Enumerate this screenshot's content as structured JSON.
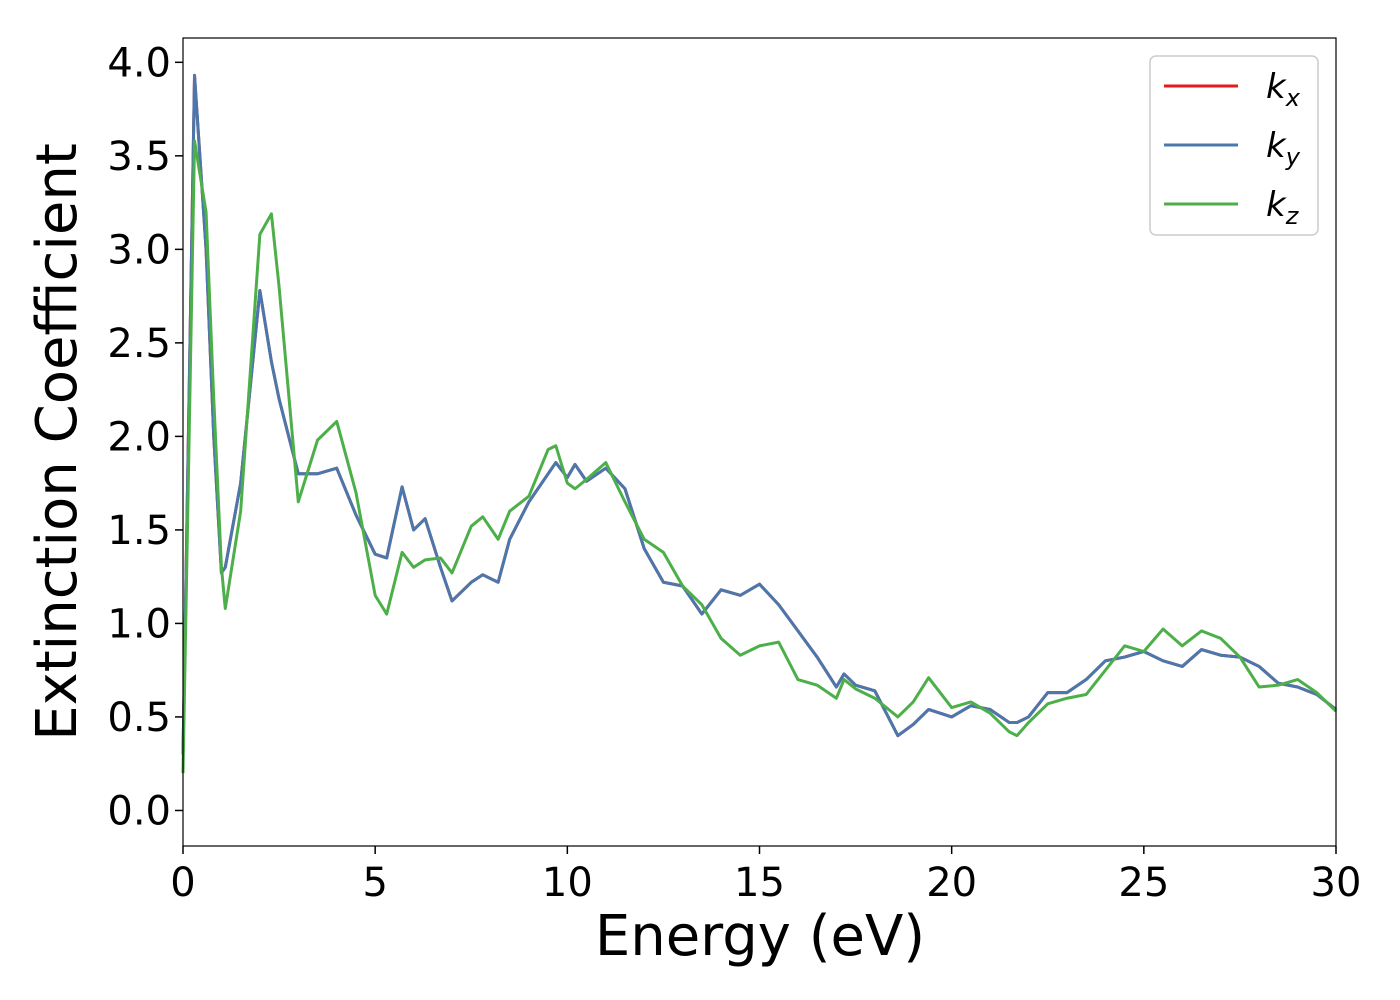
{
  "chart_data": {
    "type": "line",
    "xlabel": "Energy (eV)",
    "ylabel": "Extinction Coefficient",
    "x": [
      0,
      0.3,
      0.6,
      0.8,
      1.0,
      1.1,
      1.5,
      2.0,
      2.3,
      2.5,
      3.0,
      3.5,
      4.0,
      4.5,
      5.0,
      5.3,
      5.7,
      6.0,
      6.3,
      6.7,
      7.0,
      7.5,
      7.8,
      8.2,
      8.5,
      9.0,
      9.5,
      9.7,
      10.0,
      10.2,
      10.5,
      11.0,
      11.5,
      12.0,
      12.5,
      13.0,
      13.5,
      14.0,
      14.5,
      15.0,
      15.5,
      16.0,
      16.5,
      17.0,
      17.2,
      17.5,
      18.0,
      18.6,
      19.0,
      19.4,
      20.0,
      20.5,
      21.0,
      21.5,
      21.7,
      22.0,
      22.5,
      23.0,
      23.5,
      24.0,
      24.5,
      25.0,
      25.5,
      26.0,
      26.5,
      27.0,
      27.5,
      28.0,
      28.5,
      29.0,
      29.5,
      30.0
    ],
    "series": [
      {
        "name": "kx",
        "color": "#e41a1c",
        "values": [
          0.3,
          3.93,
          3.0,
          2.0,
          1.27,
          1.3,
          1.75,
          2.78,
          2.4,
          2.2,
          1.8,
          1.8,
          1.83,
          1.58,
          1.37,
          1.35,
          1.73,
          1.5,
          1.56,
          1.3,
          1.12,
          1.22,
          1.26,
          1.22,
          1.45,
          1.65,
          1.8,
          1.86,
          1.78,
          1.85,
          1.76,
          1.83,
          1.72,
          1.4,
          1.22,
          1.2,
          1.05,
          1.18,
          1.15,
          1.21,
          1.1,
          0.96,
          0.82,
          0.66,
          0.73,
          0.67,
          0.64,
          0.4,
          0.46,
          0.54,
          0.5,
          0.56,
          0.54,
          0.47,
          0.47,
          0.5,
          0.63,
          0.63,
          0.7,
          0.8,
          0.82,
          0.85,
          0.8,
          0.77,
          0.86,
          0.83,
          0.82,
          0.77,
          0.68,
          0.66,
          0.62,
          0.54
        ]
      },
      {
        "name": "ky",
        "color": "#4a78ac",
        "values": [
          0.3,
          3.93,
          3.0,
          2.0,
          1.27,
          1.3,
          1.75,
          2.78,
          2.4,
          2.2,
          1.8,
          1.8,
          1.83,
          1.58,
          1.37,
          1.35,
          1.73,
          1.5,
          1.56,
          1.3,
          1.12,
          1.22,
          1.26,
          1.22,
          1.45,
          1.65,
          1.8,
          1.86,
          1.78,
          1.85,
          1.76,
          1.83,
          1.72,
          1.4,
          1.22,
          1.2,
          1.05,
          1.18,
          1.15,
          1.21,
          1.1,
          0.96,
          0.82,
          0.66,
          0.73,
          0.67,
          0.64,
          0.4,
          0.46,
          0.54,
          0.5,
          0.56,
          0.54,
          0.47,
          0.47,
          0.5,
          0.63,
          0.63,
          0.7,
          0.8,
          0.82,
          0.85,
          0.8,
          0.77,
          0.86,
          0.83,
          0.82,
          0.77,
          0.68,
          0.66,
          0.62,
          0.54
        ]
      },
      {
        "name": "kz",
        "color": "#4daf4a",
        "values": [
          0.2,
          3.58,
          3.2,
          2.2,
          1.3,
          1.08,
          1.6,
          3.08,
          3.19,
          2.8,
          1.65,
          1.98,
          2.08,
          1.7,
          1.15,
          1.05,
          1.38,
          1.3,
          1.34,
          1.35,
          1.27,
          1.52,
          1.57,
          1.45,
          1.6,
          1.68,
          1.93,
          1.95,
          1.75,
          1.72,
          1.77,
          1.86,
          1.65,
          1.45,
          1.38,
          1.2,
          1.1,
          0.92,
          0.83,
          0.88,
          0.9,
          0.7,
          0.67,
          0.6,
          0.7,
          0.65,
          0.6,
          0.5,
          0.58,
          0.71,
          0.55,
          0.58,
          0.52,
          0.42,
          0.4,
          0.47,
          0.57,
          0.6,
          0.62,
          0.75,
          0.88,
          0.85,
          0.97,
          0.88,
          0.96,
          0.92,
          0.82,
          0.66,
          0.67,
          0.7,
          0.63,
          0.53
        ]
      }
    ],
    "xlim": [
      0,
      30
    ],
    "xticks": [
      0,
      5,
      10,
      15,
      20,
      25,
      30
    ],
    "ylim": [
      -0.19,
      4.13
    ],
    "yticks": [
      {
        "value": 0,
        "label": "0.0"
      },
      0.5,
      {
        "value": 1,
        "label": "1.0"
      },
      1.5,
      {
        "value": 2,
        "label": "2.0"
      },
      2.5,
      {
        "value": 3,
        "label": "3.0"
      },
      3.5,
      {
        "value": 4,
        "label": "4.0"
      }
    ],
    "legend": "upper right",
    "grid": false
  }
}
